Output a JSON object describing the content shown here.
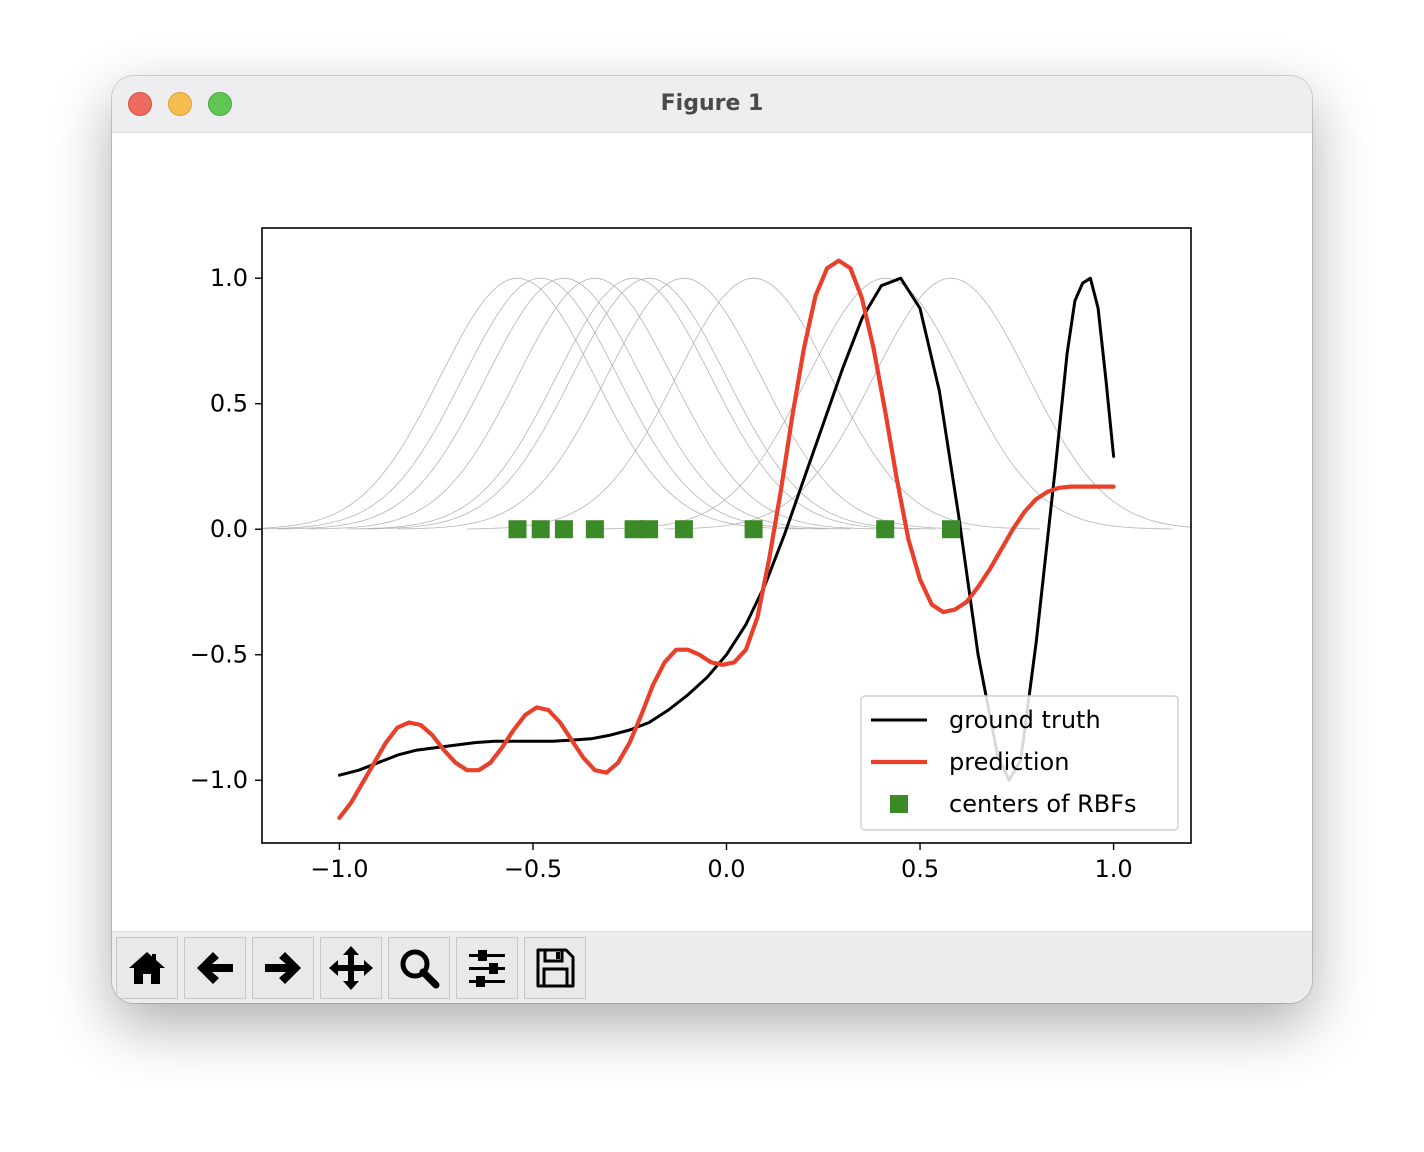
{
  "window": {
    "title": "Figure 1"
  },
  "toolbar": {
    "items": [
      {
        "id": "home",
        "icon": "home-icon"
      },
      {
        "id": "back",
        "icon": "arrow-left-icon"
      },
      {
        "id": "forward",
        "icon": "arrow-right-icon"
      },
      {
        "id": "pan",
        "icon": "move-icon"
      },
      {
        "id": "zoom",
        "icon": "magnifier-icon"
      },
      {
        "id": "configure",
        "icon": "sliders-icon"
      },
      {
        "id": "save",
        "icon": "floppy-disk-icon"
      }
    ]
  },
  "colors": {
    "ground_truth": "#000000",
    "prediction": "#e8402a",
    "centers": "#3a8a27",
    "rbf": "#b4b4b4"
  },
  "chart_data": {
    "type": "line",
    "title": "",
    "xlabel": "",
    "ylabel": "",
    "xlim": [
      -1.2,
      1.2
    ],
    "ylim": [
      -1.25,
      1.2
    ],
    "xticks": [
      -1.0,
      -0.5,
      0.0,
      0.5,
      1.0
    ],
    "yticks": [
      -1.0,
      -0.5,
      0.0,
      0.5,
      1.0
    ],
    "xtick_labels": [
      "−1.0",
      "−0.5",
      "0.0",
      "0.5",
      "1.0"
    ],
    "ytick_labels": [
      "−1.0",
      "−0.5",
      "0.0",
      "0.5",
      "1.0"
    ],
    "grid": false,
    "legend": {
      "location": "lower right",
      "entries": [
        "ground truth",
        "prediction",
        "centers of RBFs"
      ]
    },
    "series": [
      {
        "name": "ground truth",
        "style": "line",
        "x": [
          -1.0,
          -0.95,
          -0.9,
          -0.85,
          -0.8,
          -0.75,
          -0.7,
          -0.65,
          -0.6,
          -0.55,
          -0.5,
          -0.45,
          -0.4,
          -0.35,
          -0.3,
          -0.25,
          -0.2,
          -0.15,
          -0.1,
          -0.05,
          0.0,
          0.05,
          0.1,
          0.15,
          0.2,
          0.25,
          0.3,
          0.35,
          0.4,
          0.45,
          0.5,
          0.55,
          0.6,
          0.65,
          0.7,
          0.73,
          0.76,
          0.8,
          0.85,
          0.88,
          0.9,
          0.92,
          0.94,
          0.96,
          0.98,
          1.0
        ],
        "y": [
          -0.98,
          -0.96,
          -0.93,
          -0.9,
          -0.88,
          -0.87,
          -0.86,
          -0.85,
          -0.845,
          -0.845,
          -0.845,
          -0.845,
          -0.84,
          -0.835,
          -0.82,
          -0.8,
          -0.77,
          -0.72,
          -0.66,
          -0.59,
          -0.5,
          -0.38,
          -0.22,
          -0.02,
          0.2,
          0.42,
          0.64,
          0.84,
          0.97,
          1.0,
          0.88,
          0.55,
          0.05,
          -0.5,
          -0.9,
          -1.0,
          -0.92,
          -0.45,
          0.25,
          0.7,
          0.91,
          0.98,
          1.0,
          0.88,
          0.6,
          0.29
        ]
      },
      {
        "name": "prediction",
        "style": "line",
        "x": [
          -1.0,
          -0.97,
          -0.94,
          -0.91,
          -0.88,
          -0.85,
          -0.82,
          -0.79,
          -0.76,
          -0.73,
          -0.7,
          -0.67,
          -0.64,
          -0.61,
          -0.58,
          -0.55,
          -0.52,
          -0.49,
          -0.46,
          -0.43,
          -0.4,
          -0.37,
          -0.34,
          -0.31,
          -0.28,
          -0.25,
          -0.22,
          -0.19,
          -0.16,
          -0.13,
          -0.1,
          -0.07,
          -0.04,
          -0.01,
          0.02,
          0.05,
          0.08,
          0.11,
          0.14,
          0.17,
          0.2,
          0.23,
          0.26,
          0.29,
          0.32,
          0.35,
          0.38,
          0.41,
          0.44,
          0.47,
          0.5,
          0.53,
          0.56,
          0.59,
          0.62,
          0.65,
          0.68,
          0.71,
          0.74,
          0.77,
          0.8,
          0.83,
          0.86,
          0.89,
          0.92,
          0.95,
          0.98,
          1.0
        ],
        "y": [
          -1.15,
          -1.09,
          -1.01,
          -0.93,
          -0.85,
          -0.79,
          -0.77,
          -0.78,
          -0.82,
          -0.88,
          -0.93,
          -0.96,
          -0.96,
          -0.93,
          -0.87,
          -0.8,
          -0.74,
          -0.71,
          -0.72,
          -0.77,
          -0.84,
          -0.91,
          -0.96,
          -0.97,
          -0.93,
          -0.85,
          -0.74,
          -0.62,
          -0.53,
          -0.48,
          -0.48,
          -0.5,
          -0.53,
          -0.54,
          -0.53,
          -0.48,
          -0.35,
          -0.12,
          0.15,
          0.45,
          0.72,
          0.93,
          1.04,
          1.07,
          1.04,
          0.92,
          0.72,
          0.47,
          0.2,
          -0.04,
          -0.2,
          -0.3,
          -0.33,
          -0.32,
          -0.29,
          -0.23,
          -0.16,
          -0.08,
          0.0,
          0.07,
          0.12,
          0.15,
          0.165,
          0.17,
          0.17,
          0.17,
          0.17,
          0.17
        ]
      },
      {
        "name": "centers of RBFs",
        "style": "markers",
        "x": [
          -0.54,
          -0.48,
          -0.42,
          -0.34,
          -0.24,
          -0.2,
          -0.11,
          0.07,
          0.41,
          0.58
        ],
        "y": [
          0.0,
          0.0,
          0.0,
          0.0,
          0.0,
          0.0,
          0.0,
          0.0,
          0.0,
          0.0
        ]
      }
    ],
    "rbf_curves": {
      "description": "gaussian basis functions centered on the RBF centers",
      "centers": [
        -0.54,
        -0.48,
        -0.42,
        -0.34,
        -0.24,
        -0.2,
        -0.11,
        0.07,
        0.41,
        0.58
      ],
      "sigma": 0.2,
      "baseline": 0.0
    }
  }
}
